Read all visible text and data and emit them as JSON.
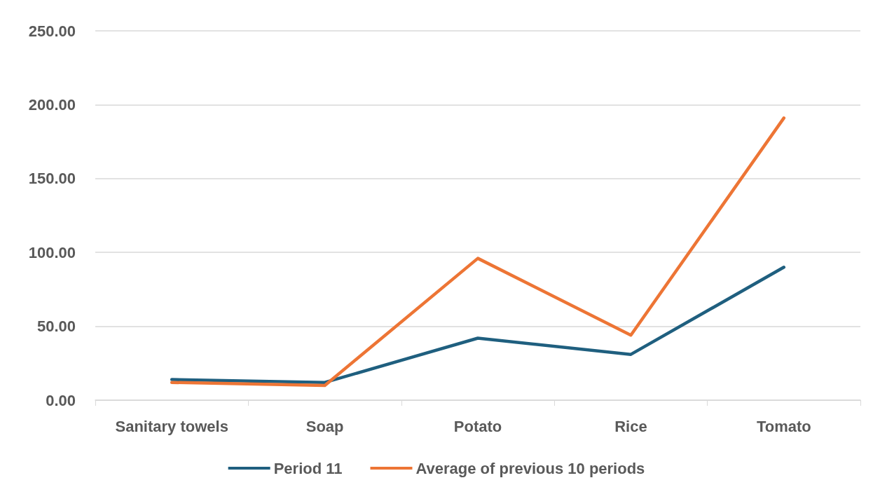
{
  "chart_data": {
    "type": "line",
    "categories": [
      "Sanitary towels",
      "Soap",
      "Potato",
      "Rice",
      "Tomato"
    ],
    "series": [
      {
        "name": "Period 11",
        "color": "#1f5f7f",
        "values": [
          14,
          12,
          42,
          31,
          90
        ]
      },
      {
        "name": "Average of previous 10 periods",
        "color": "#ed7535",
        "values": [
          12,
          10,
          96,
          44,
          191
        ]
      }
    ],
    "ylim": [
      0,
      250
    ],
    "yticks": [
      {
        "value": 0,
        "label": "0.00"
      },
      {
        "value": 50,
        "label": "50.00"
      },
      {
        "value": 100,
        "label": "100.00"
      },
      {
        "value": 150,
        "label": "150.00"
      },
      {
        "value": 200,
        "label": "200.00"
      },
      {
        "value": 250,
        "label": "250.00"
      }
    ],
    "grid": "y",
    "legend": "bottom",
    "marker": "none",
    "line_style": "solid"
  }
}
